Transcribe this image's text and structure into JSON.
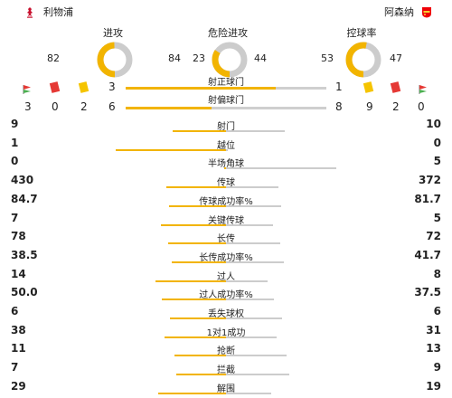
{
  "header": {
    "team_home": "利物浦",
    "team_away": "阿森纳",
    "home_logo_icon": "liverbird-icon",
    "away_logo_icon": "cannon-crest-icon",
    "home_color": "#c8102e",
    "away_color": "#ef0107"
  },
  "donuts": [
    {
      "title": "进攻",
      "home": "82",
      "away": "84"
    },
    {
      "title": "危险进攻",
      "home": "23",
      "away": "44"
    },
    {
      "title": "控球率",
      "home": "53",
      "away": "47"
    }
  ],
  "shots_on_target": {
    "label": "射正球门",
    "home": "3",
    "away": "1"
  },
  "shots_off_target": {
    "label": "射偏球门",
    "home": "6",
    "away": "8"
  },
  "cards": {
    "home": {
      "corners": "3",
      "red": "0",
      "yellow": "2"
    },
    "away": {
      "yellow": "9",
      "red": "2",
      "corners": "0"
    }
  },
  "stats": [
    {
      "label": "射门",
      "home": "9",
      "away": "10"
    },
    {
      "label": "越位",
      "home": "1",
      "away": "0"
    },
    {
      "label": "半场角球",
      "home": "0",
      "away": "5"
    },
    {
      "label": "传球",
      "home": "430",
      "away": "372"
    },
    {
      "label": "传球成功率%",
      "home": "84.7",
      "away": "81.7"
    },
    {
      "label": "关键传球",
      "home": "7",
      "away": "5"
    },
    {
      "label": "长传",
      "home": "78",
      "away": "72"
    },
    {
      "label": "长传成功率%",
      "home": "38.5",
      "away": "41.7"
    },
    {
      "label": "过人",
      "home": "14",
      "away": "8"
    },
    {
      "label": "过人成功率%",
      "home": "50.0",
      "away": "37.5"
    },
    {
      "label": "丢失球权",
      "home": "6",
      "away": "6"
    },
    {
      "label": "1对1成功",
      "home": "38",
      "away": "31"
    },
    {
      "label": "抢断",
      "home": "11",
      "away": "13"
    },
    {
      "label": "拦截",
      "home": "7",
      "away": "9"
    },
    {
      "label": "解围",
      "home": "29",
      "away": "19"
    }
  ],
  "colors": {
    "accent": "#f2b400",
    "track": "#cccccc"
  }
}
